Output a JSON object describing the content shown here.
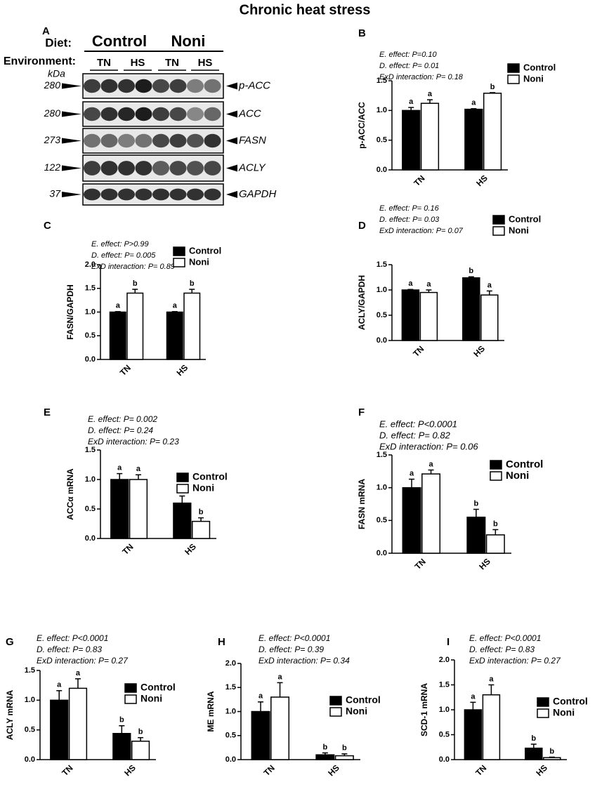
{
  "title": "Chronic heat stress",
  "blot": {
    "panel": "A",
    "diet_label": "Diet:",
    "diets": [
      "Control",
      "Noni"
    ],
    "environment_label": "Environment:",
    "environments": [
      "TN",
      "HS",
      "TN",
      "HS"
    ],
    "unit": "kDa",
    "rows": [
      {
        "size": "280",
        "protein": "p-ACC"
      },
      {
        "size": "280",
        "protein": "ACC"
      },
      {
        "size": "273",
        "protein": "FASN"
      },
      {
        "size": "122",
        "protein": "ACLY"
      },
      {
        "size": "37",
        "protein": "GAPDH"
      }
    ]
  },
  "chart_data": [
    {
      "type": "bar",
      "panel": "B",
      "ylabel": "p-ACC/ACC",
      "categories": [
        "TN",
        "HS"
      ],
      "annotations": [
        "E. effect: P=0.10",
        "D. effect: P= 0.01",
        "ExD interaction: P= 0.18"
      ],
      "ylim": [
        0,
        1.5
      ],
      "yticks": [
        {
          "value": 0,
          "label": "0.0"
        },
        {
          "value": 0.5,
          "label": "0.5"
        },
        {
          "value": 1,
          "label": "1.0"
        },
        {
          "value": 1.5,
          "label": "1.5"
        }
      ],
      "series": [
        {
          "name": "Control",
          "color": "#000000",
          "values": [
            1.0,
            1.02
          ],
          "errors": [
            0.05,
            0.01
          ],
          "letters": [
            "a",
            "a"
          ]
        },
        {
          "name": "Noni",
          "color": "#ffffff",
          "values": [
            1.12,
            1.29
          ],
          "errors": [
            0.06,
            0.01
          ],
          "letters": [
            "a",
            "b"
          ]
        }
      ]
    },
    {
      "type": "bar",
      "panel": "C",
      "ylabel": "FASN/GAPDH",
      "categories": [
        "TN",
        "HS"
      ],
      "annotations": [
        "E. effect: P>0.99",
        "D. effect: P= 0.005",
        "ExD interaction: P= 0.89"
      ],
      "ylim": [
        0,
        2
      ],
      "yticks": [
        {
          "value": 0,
          "label": "0.0"
        },
        {
          "value": 0.5,
          "label": "0.5"
        },
        {
          "value": 1,
          "label": "1.0"
        },
        {
          "value": 1.5,
          "label": "1.5"
        },
        {
          "value": 2,
          "label": "2.0"
        }
      ],
      "series": [
        {
          "name": "Control",
          "color": "#000000",
          "values": [
            1.0,
            1.0
          ],
          "errors": [
            0.01,
            0.01
          ],
          "letters": [
            "a",
            "a"
          ]
        },
        {
          "name": "Noni",
          "color": "#ffffff",
          "values": [
            1.4,
            1.4
          ],
          "errors": [
            0.08,
            0.08
          ],
          "letters": [
            "b",
            "b"
          ]
        }
      ]
    },
    {
      "type": "bar",
      "panel": "D",
      "ylabel": "ACLY/GAPDH",
      "categories": [
        "TN",
        "HS"
      ],
      "annotations": [
        "E. effect: P= 0.16",
        "D. effect: P= 0.03",
        "ExD interaction: P= 0.07"
      ],
      "ylim": [
        0,
        1.5
      ],
      "yticks": [
        {
          "value": 0,
          "label": "0.0"
        },
        {
          "value": 0.5,
          "label": "0.5"
        },
        {
          "value": 1,
          "label": "1.0"
        },
        {
          "value": 1.5,
          "label": "1.5"
        }
      ],
      "series": [
        {
          "name": "Control",
          "color": "#000000",
          "values": [
            1.0,
            1.24
          ],
          "errors": [
            0.01,
            0.02
          ],
          "letters": [
            "a",
            "b"
          ]
        },
        {
          "name": "Noni",
          "color": "#ffffff",
          "values": [
            0.95,
            0.9
          ],
          "errors": [
            0.05,
            0.08
          ],
          "letters": [
            "a",
            "a"
          ]
        }
      ]
    },
    {
      "type": "bar",
      "panel": "E",
      "ylabel": "ACCα mRNA",
      "categories": [
        "TN",
        "HS"
      ],
      "annotations": [
        "E. effect: P= 0.002",
        "D. effect: P= 0.24",
        "ExD interaction: P= 0.23"
      ],
      "ylim": [
        0,
        1.5
      ],
      "yticks": [
        {
          "value": 0,
          "label": "0.0"
        },
        {
          "value": 0.5,
          "label": "0.5"
        },
        {
          "value": 1,
          "label": "1.0"
        },
        {
          "value": 1.5,
          "label": "1.5"
        }
      ],
      "series": [
        {
          "name": "Control",
          "color": "#000000",
          "values": [
            1.0,
            0.6
          ],
          "errors": [
            0.1,
            0.12
          ],
          "letters": [
            "a",
            "b"
          ]
        },
        {
          "name": "Noni",
          "color": "#ffffff",
          "values": [
            1.0,
            0.29
          ],
          "errors": [
            0.08,
            0.06
          ],
          "letters": [
            "a",
            "b"
          ]
        }
      ]
    },
    {
      "type": "bar",
      "panel": "F",
      "ylabel": "FASN mRNA",
      "categories": [
        "TN",
        "HS"
      ],
      "annotations": [
        "E. effect: P<0.0001",
        "D. effect: P= 0.82",
        "ExD interaction: P= 0.06"
      ],
      "ylim": [
        0,
        1.5
      ],
      "yticks": [
        {
          "value": 0,
          "label": "0.0"
        },
        {
          "value": 0.5,
          "label": "0.5"
        },
        {
          "value": 1,
          "label": "1.0"
        },
        {
          "value": 1.5,
          "label": "1.5"
        }
      ],
      "series": [
        {
          "name": "Control",
          "color": "#000000",
          "values": [
            1.0,
            0.55
          ],
          "errors": [
            0.13,
            0.12
          ],
          "letters": [
            "a",
            "b"
          ]
        },
        {
          "name": "Noni",
          "color": "#ffffff",
          "values": [
            1.21,
            0.28
          ],
          "errors": [
            0.06,
            0.08
          ],
          "letters": [
            "a",
            "b"
          ]
        }
      ]
    },
    {
      "type": "bar",
      "panel": "G",
      "ylabel": "ACLY mRNA",
      "categories": [
        "TN",
        "HS"
      ],
      "annotations": [
        "E. effect: P<0.0001",
        "D. effect: P= 0.83",
        "ExD interaction: P= 0.27"
      ],
      "ylim": [
        0,
        1.5
      ],
      "yticks": [
        {
          "value": 0,
          "label": "0.0"
        },
        {
          "value": 0.5,
          "label": "0.5"
        },
        {
          "value": 1,
          "label": "1.0"
        },
        {
          "value": 1.5,
          "label": "1.5"
        }
      ],
      "series": [
        {
          "name": "Control",
          "color": "#000000",
          "values": [
            1.0,
            0.44
          ],
          "errors": [
            0.16,
            0.13
          ],
          "letters": [
            "a",
            "b"
          ]
        },
        {
          "name": "Noni",
          "color": "#ffffff",
          "values": [
            1.2,
            0.31
          ],
          "errors": [
            0.16,
            0.06
          ],
          "letters": [
            "a",
            "b"
          ]
        }
      ]
    },
    {
      "type": "bar",
      "panel": "H",
      "ylabel": "ME mRNA",
      "categories": [
        "TN",
        "HS"
      ],
      "annotations": [
        "E. effect: P<0.0001",
        "D. effect: P= 0.39",
        "ExD interaction: P= 0.34"
      ],
      "ylim": [
        0,
        2
      ],
      "yticks": [
        {
          "value": 0,
          "label": "0.0"
        },
        {
          "value": 0.5,
          "label": "0.5"
        },
        {
          "value": 1,
          "label": "1.0"
        },
        {
          "value": 1.5,
          "label": "1.5"
        },
        {
          "value": 2,
          "label": "2.0"
        }
      ],
      "series": [
        {
          "name": "Control",
          "color": "#000000",
          "values": [
            1.0,
            0.1
          ],
          "errors": [
            0.2,
            0.04
          ],
          "letters": [
            "a",
            "b"
          ]
        },
        {
          "name": "Noni",
          "color": "#ffffff",
          "values": [
            1.3,
            0.08
          ],
          "errors": [
            0.3,
            0.04
          ],
          "letters": [
            "a",
            "b"
          ]
        }
      ]
    },
    {
      "type": "bar",
      "panel": "I",
      "ylabel": "SCD-1 mRNA",
      "categories": [
        "TN",
        "HS"
      ],
      "annotations": [
        "E. effect: P<0.0001",
        "D. effect: P= 0.83",
        "ExD interaction: P= 0.27"
      ],
      "ylim": [
        0,
        2
      ],
      "yticks": [
        {
          "value": 0,
          "label": "0.0"
        },
        {
          "value": 0.5,
          "label": "0.5"
        },
        {
          "value": 1,
          "label": "1.0"
        },
        {
          "value": 1.5,
          "label": "1.5"
        },
        {
          "value": 2,
          "label": "2.0"
        }
      ],
      "series": [
        {
          "name": "Control",
          "color": "#000000",
          "values": [
            1.0,
            0.23
          ],
          "errors": [
            0.15,
            0.08
          ],
          "letters": [
            "a",
            "b"
          ]
        },
        {
          "name": "Noni",
          "color": "#ffffff",
          "values": [
            1.3,
            0.04
          ],
          "errors": [
            0.2,
            0.01
          ],
          "letters": [
            "a",
            "b"
          ]
        }
      ]
    }
  ]
}
